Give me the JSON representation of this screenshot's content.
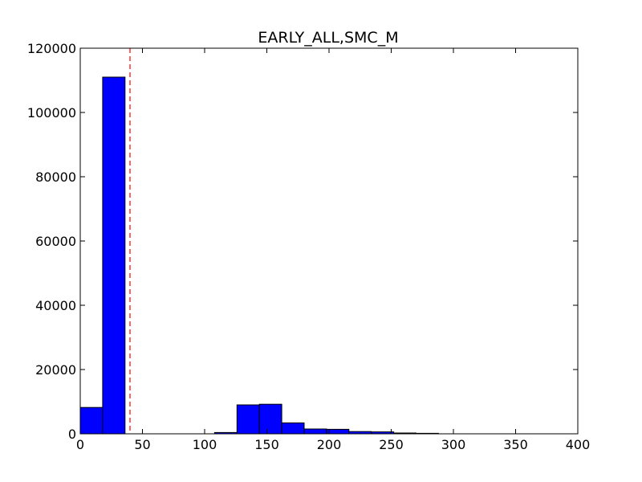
{
  "chart_data": {
    "type": "bar",
    "title": "EARLY_ALL,SMC_M",
    "xlabel": "",
    "ylabel": "",
    "xlim": [
      0,
      400
    ],
    "ylim": [
      0,
      120000
    ],
    "x_ticks": [
      0,
      50,
      100,
      150,
      200,
      250,
      300,
      350,
      400
    ],
    "y_ticks": [
      0,
      20000,
      40000,
      60000,
      80000,
      100000,
      120000
    ],
    "bin_width": 18,
    "bins": [
      {
        "x0": 0,
        "value": 8200
      },
      {
        "x0": 18,
        "value": 111000
      },
      {
        "x0": 36,
        "value": 0
      },
      {
        "x0": 54,
        "value": 0
      },
      {
        "x0": 72,
        "value": 0
      },
      {
        "x0": 90,
        "value": 0
      },
      {
        "x0": 108,
        "value": 400
      },
      {
        "x0": 126,
        "value": 9000
      },
      {
        "x0": 144,
        "value": 9200
      },
      {
        "x0": 162,
        "value": 3400
      },
      {
        "x0": 180,
        "value": 1500
      },
      {
        "x0": 198,
        "value": 1400
      },
      {
        "x0": 216,
        "value": 700
      },
      {
        "x0": 234,
        "value": 600
      },
      {
        "x0": 252,
        "value": 250
      },
      {
        "x0": 270,
        "value": 150
      }
    ],
    "bar_color": "#0000ff",
    "threshold_line": {
      "x": 40,
      "color": "#ff0000",
      "style": "dashed"
    },
    "grid": false
  }
}
